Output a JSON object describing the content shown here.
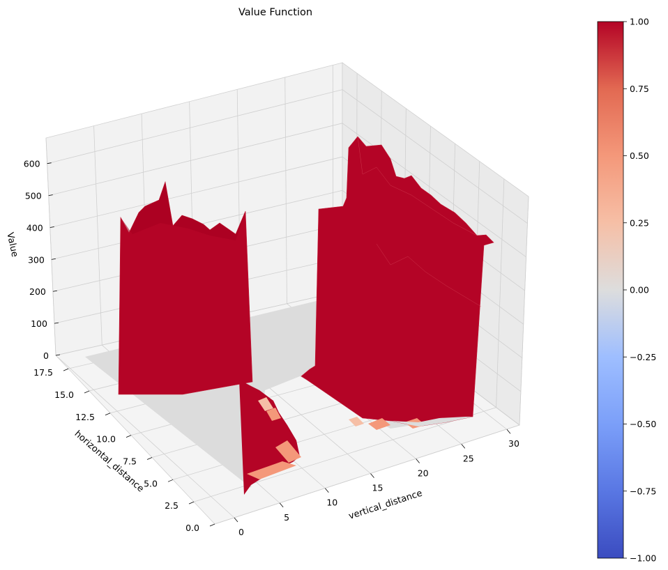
{
  "chart_data": {
    "type": "surface3d",
    "title": "Value Function",
    "xlabel": "vertical_distance",
    "ylabel": "horizontal_distance",
    "zlabel": "Value",
    "x_ticks": [
      "0",
      "5",
      "10",
      "15",
      "20",
      "25",
      "30"
    ],
    "y_ticks": [
      "0.0",
      "2.5",
      "5.0",
      "7.5",
      "10.0",
      "12.5",
      "15.0",
      "17.5"
    ],
    "z_ticks": [
      "0",
      "100",
      "200",
      "300",
      "400",
      "500",
      "600"
    ],
    "xlim": [
      0,
      31
    ],
    "ylim": [
      0,
      19
    ],
    "zlim": [
      0,
      680
    ],
    "colormap": "coolwarm",
    "colorbar": {
      "min": -1.0,
      "max": 1.0,
      "ticks": [
        "1.00",
        "0.75",
        "0.50",
        "0.25",
        "0.00",
        "−0.25",
        "−0.50",
        "−0.75",
        "−1.00"
      ]
    },
    "surface_regions": [
      {
        "name": "left wall",
        "x_range": [
          0,
          2
        ],
        "y_range": [
          0,
          18
        ],
        "value_range": [
          380,
          540
        ],
        "color": "#b40426"
      },
      {
        "name": "left pit edge",
        "x_range": [
          0,
          2
        ],
        "y_range": [
          0,
          5
        ],
        "value_range": [
          -50,
          0
        ],
        "color": "#b40426"
      },
      {
        "name": "right plateau",
        "x_range": [
          21,
          31
        ],
        "y_range": [
          0,
          18
        ],
        "value_range": [
          330,
          650
        ],
        "color": "#b40426"
      },
      {
        "name": "floor",
        "x_range": [
          0,
          31
        ],
        "y_range": [
          0,
          19
        ],
        "value": 0,
        "color": "#dddddd"
      },
      {
        "name": "floor highlights",
        "value": 0.4,
        "color": "#f4987a"
      }
    ],
    "grid": true,
    "colors": {
      "high": "#b40426",
      "mid": "#dddddd",
      "low": "#3b4cc0",
      "highlight": "#f4987a"
    }
  }
}
